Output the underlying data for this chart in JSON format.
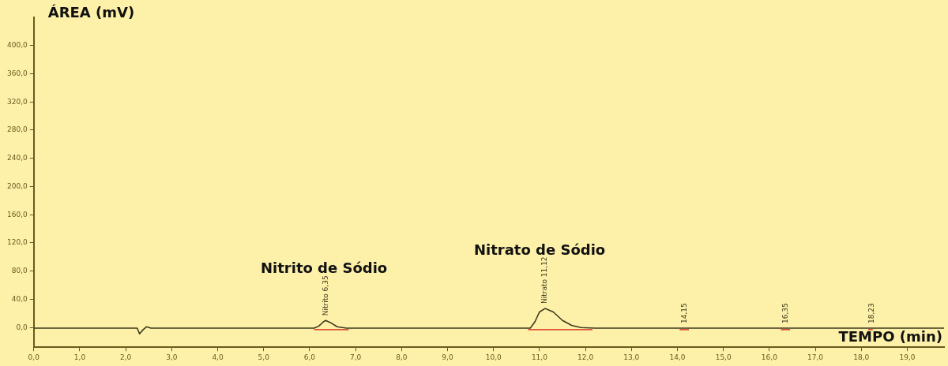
{
  "chart_data": {
    "type": "line",
    "ylabel": "ÁREA (mV)",
    "xlabel": "TEMPO (min)",
    "xlim": [
      0,
      19.8
    ],
    "xticks": [
      {
        "value": 0,
        "label": "0,0"
      },
      {
        "value": 1,
        "label": "1,0"
      },
      {
        "value": 2,
        "label": "2,0"
      },
      {
        "value": 3,
        "label": "3,0"
      },
      {
        "value": 4,
        "label": "4,0"
      },
      {
        "value": 5,
        "label": "5,0"
      },
      {
        "value": 6,
        "label": "6,0"
      },
      {
        "value": 7,
        "label": "7,0"
      },
      {
        "value": 8,
        "label": "8,0"
      },
      {
        "value": 9,
        "label": "9,0"
      },
      {
        "value": 10,
        "label": "10,0"
      },
      {
        "value": 11,
        "label": "11,0"
      },
      {
        "value": 12,
        "label": "12,0"
      },
      {
        "value": 13,
        "label": "13,0"
      },
      {
        "value": 14,
        "label": "14,0"
      },
      {
        "value": 15,
        "label": "15,0"
      },
      {
        "value": 16,
        "label": "16,0"
      },
      {
        "value": 17,
        "label": "17,0"
      },
      {
        "value": 18,
        "label": "18,0"
      },
      {
        "value": 19,
        "label": "19,0"
      }
    ],
    "ylim": [
      -28,
      440
    ],
    "yticks": [
      {
        "value": 0,
        "label": "0,0"
      },
      {
        "value": 40,
        "label": "40,0"
      },
      {
        "value": 80,
        "label": "80,0"
      },
      {
        "value": 120,
        "label": "120,0"
      },
      {
        "value": 160,
        "label": "160,0"
      },
      {
        "value": 200,
        "label": "200,0"
      },
      {
        "value": 240,
        "label": "240,0"
      },
      {
        "value": 280,
        "label": "280,0"
      },
      {
        "value": 320,
        "label": "320,0"
      },
      {
        "value": 360,
        "label": "360,0"
      },
      {
        "value": 400,
        "label": "400,0"
      }
    ],
    "grid": false,
    "legend": false,
    "marker": "none",
    "line_style": "solid",
    "series": [
      {
        "color": "#3d3a1c",
        "x": [
          0,
          2.0,
          2.25,
          2.3,
          2.38,
          2.45,
          2.55,
          6.1,
          6.2,
          6.3,
          6.35,
          6.45,
          6.6,
          6.8,
          10.8,
          10.9,
          11.0,
          11.12,
          11.3,
          11.5,
          11.7,
          11.9,
          12.2,
          14.15,
          16.35,
          18.23,
          19.8
        ],
        "values": [
          -1,
          -1,
          -1,
          -9,
          -3,
          1,
          -1,
          -1,
          2,
          8,
          10,
          7,
          1,
          -1,
          -1,
          8,
          22,
          27,
          22,
          10,
          3,
          0,
          -1,
          -1,
          -1,
          -1,
          -1
        ]
      },
      {
        "color": "#e0533a",
        "x": [
          6.1,
          6.85,
          6.9,
          10.75,
          12.15,
          12.2,
          14.05,
          14.25,
          14.3,
          16.25,
          16.45,
          16.5,
          18.15,
          18.25
        ],
        "values": [
          -3,
          -3,
          null,
          -3,
          -3,
          null,
          -3,
          -3,
          null,
          -3,
          -3,
          null,
          -3,
          -3
        ]
      }
    ],
    "annotations": [
      "Nitrito de Sódio",
      "Nitrato de Sódio",
      {
        "text": "Nitrito 6,35",
        "x": 6.35,
        "y": 10
      },
      {
        "text": "Nitrato 11,12",
        "x": 11.12,
        "y": 27
      },
      {
        "text": "14,15",
        "x": 14.15,
        "y": -1
      },
      {
        "text": "16,35",
        "x": 16.35,
        "y": -1
      },
      {
        "text": "18,23",
        "x": 18.23,
        "y": -1
      }
    ]
  }
}
